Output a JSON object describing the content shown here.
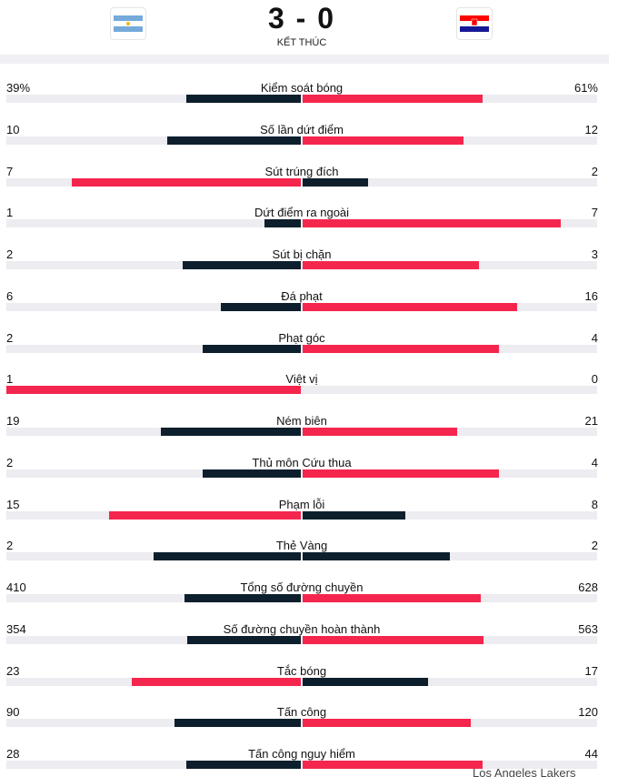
{
  "header": {
    "score_home": 3,
    "score_away": 0,
    "status": "KẾT THÚC"
  },
  "stats": [
    {
      "label": "Kiểm soát bóng",
      "home": 39,
      "away": 61,
      "home_label": "39%",
      "away_label": "61%"
    },
    {
      "label": "Số lần dứt điểm",
      "home": 10,
      "away": 12
    },
    {
      "label": "Sút trúng đích",
      "home": 7,
      "away": 2
    },
    {
      "label": "Dứt điểm ra ngoài",
      "home": 1,
      "away": 7
    },
    {
      "label": "Sút bị chặn",
      "home": 2,
      "away": 3
    },
    {
      "label": "Đá phạt",
      "home": 6,
      "away": 16
    },
    {
      "label": "Phạt góc",
      "home": 2,
      "away": 4
    },
    {
      "label": "Việt vị",
      "home": 1,
      "away": 0
    },
    {
      "label": "Ném biên",
      "home": 19,
      "away": 21
    },
    {
      "label": "Thủ môn Cứu thua",
      "home": 2,
      "away": 4
    },
    {
      "label": "Phạm lỗi",
      "home": 15,
      "away": 8
    },
    {
      "label": "Thẻ Vàng",
      "home": 2,
      "away": 2
    },
    {
      "label": "Tổng số đường chuyền",
      "home": 410,
      "away": 628
    },
    {
      "label": "Số đường chuyền hoàn thành",
      "home": 354,
      "away": 563
    },
    {
      "label": "Tắc bóng",
      "home": 23,
      "away": 17
    },
    {
      "label": "Tấn công",
      "home": 90,
      "away": 120
    },
    {
      "label": "Tấn công nguy hiểm",
      "home": 28,
      "away": 44
    }
  ],
  "footer": "Los Angeles Lakers"
}
